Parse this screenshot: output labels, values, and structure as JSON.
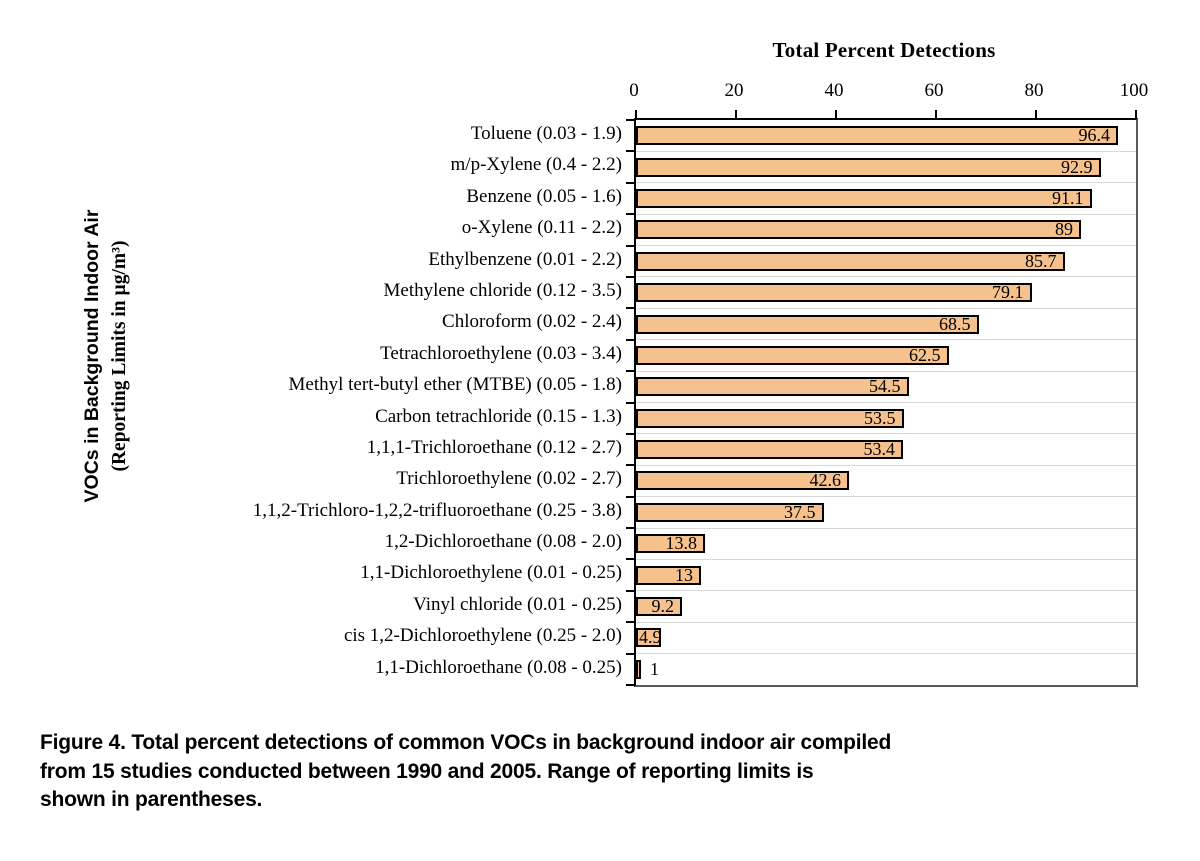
{
  "page": {
    "background": "#ffffff"
  },
  "chart_data": {
    "type": "bar",
    "orientation": "horizontal",
    "title": "Total Percent Detections",
    "ylabel_line1": "VOCs in Background Indoor Air",
    "ylabel_line2": "(Reporting Limits in µg/m³)",
    "xlim": [
      0,
      100
    ],
    "xticks": [
      0,
      20,
      40,
      60,
      80,
      100
    ],
    "grid": "row-separators-only",
    "legend": "none",
    "bar_fill": "#f5c18d",
    "bar_border": "#000000",
    "separator_color": "#d9d9d9",
    "axis_color": "#000000",
    "plot_border_color": "#595959",
    "categories": [
      "Toluene (0.03 - 1.9)",
      "m/p-Xylene (0.4 - 2.2)",
      "Benzene (0.05 - 1.6)",
      "o-Xylene (0.11 - 2.2)",
      "Ethylbenzene (0.01 - 2.2)",
      "Methylene chloride (0.12 - 3.5)",
      "Chloroform (0.02 - 2.4)",
      "Tetrachloroethylene (0.03 - 3.4)",
      "Methyl tert-butyl ether (MTBE) (0.05 - 1.8)",
      "Carbon tetrachloride (0.15 - 1.3)",
      "1,1,1-Trichloroethane (0.12 - 2.7)",
      "Trichloroethylene (0.02 - 2.7)",
      "1,1,2-Trichloro-1,2,2-trifluoroethane (0.25 - 3.8)",
      "1,2-Dichloroethane (0.08 - 2.0)",
      "1,1-Dichloroethylene (0.01 - 0.25)",
      "Vinyl chloride (0.01 - 0.25)",
      "cis 1,2-Dichloroethylene (0.25 - 2.0)",
      "1,1-Dichloroethane (0.08 - 0.25)"
    ],
    "values": [
      96.4,
      92.9,
      91.1,
      89,
      85.7,
      79.1,
      68.5,
      62.5,
      54.5,
      53.5,
      53.4,
      42.6,
      37.5,
      13.8,
      13,
      9.2,
      4.9,
      1
    ]
  },
  "caption": {
    "lines": [
      "Figure 4. Total percent detections of common VOCs in background indoor air compiled",
      "from 15 studies conducted between 1990 and 2005. Range of reporting limits is",
      "shown in parentheses."
    ]
  }
}
